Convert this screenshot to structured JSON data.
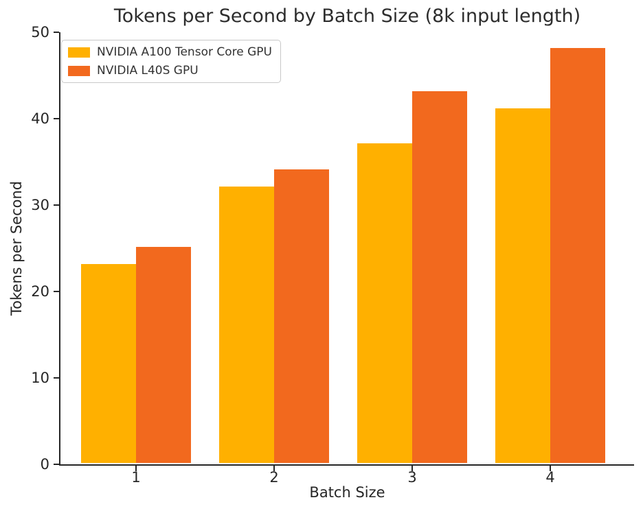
{
  "figure": {
    "background": "#ffffff",
    "text_color": "#262626"
  },
  "chart_data": {
    "type": "bar",
    "title": "Tokens per Second by Batch Size (8k input length)",
    "xlabel": "Batch Size",
    "ylabel": "Tokens per Second",
    "categories": [
      "1",
      "2",
      "3",
      "4"
    ],
    "series": [
      {
        "name": "NVIDIA A100 Tensor Core GPU",
        "color": "#FFB000",
        "values": [
          23,
          32,
          37,
          41
        ]
      },
      {
        "name": "NVIDIA L40S GPU",
        "color": "#F2691E",
        "values": [
          25,
          34,
          43,
          48
        ]
      }
    ],
    "ylim": [
      0,
      50
    ],
    "yticks": [
      0,
      10,
      20,
      30,
      40,
      50
    ],
    "grid": false,
    "legend_position": "upper-left"
  }
}
